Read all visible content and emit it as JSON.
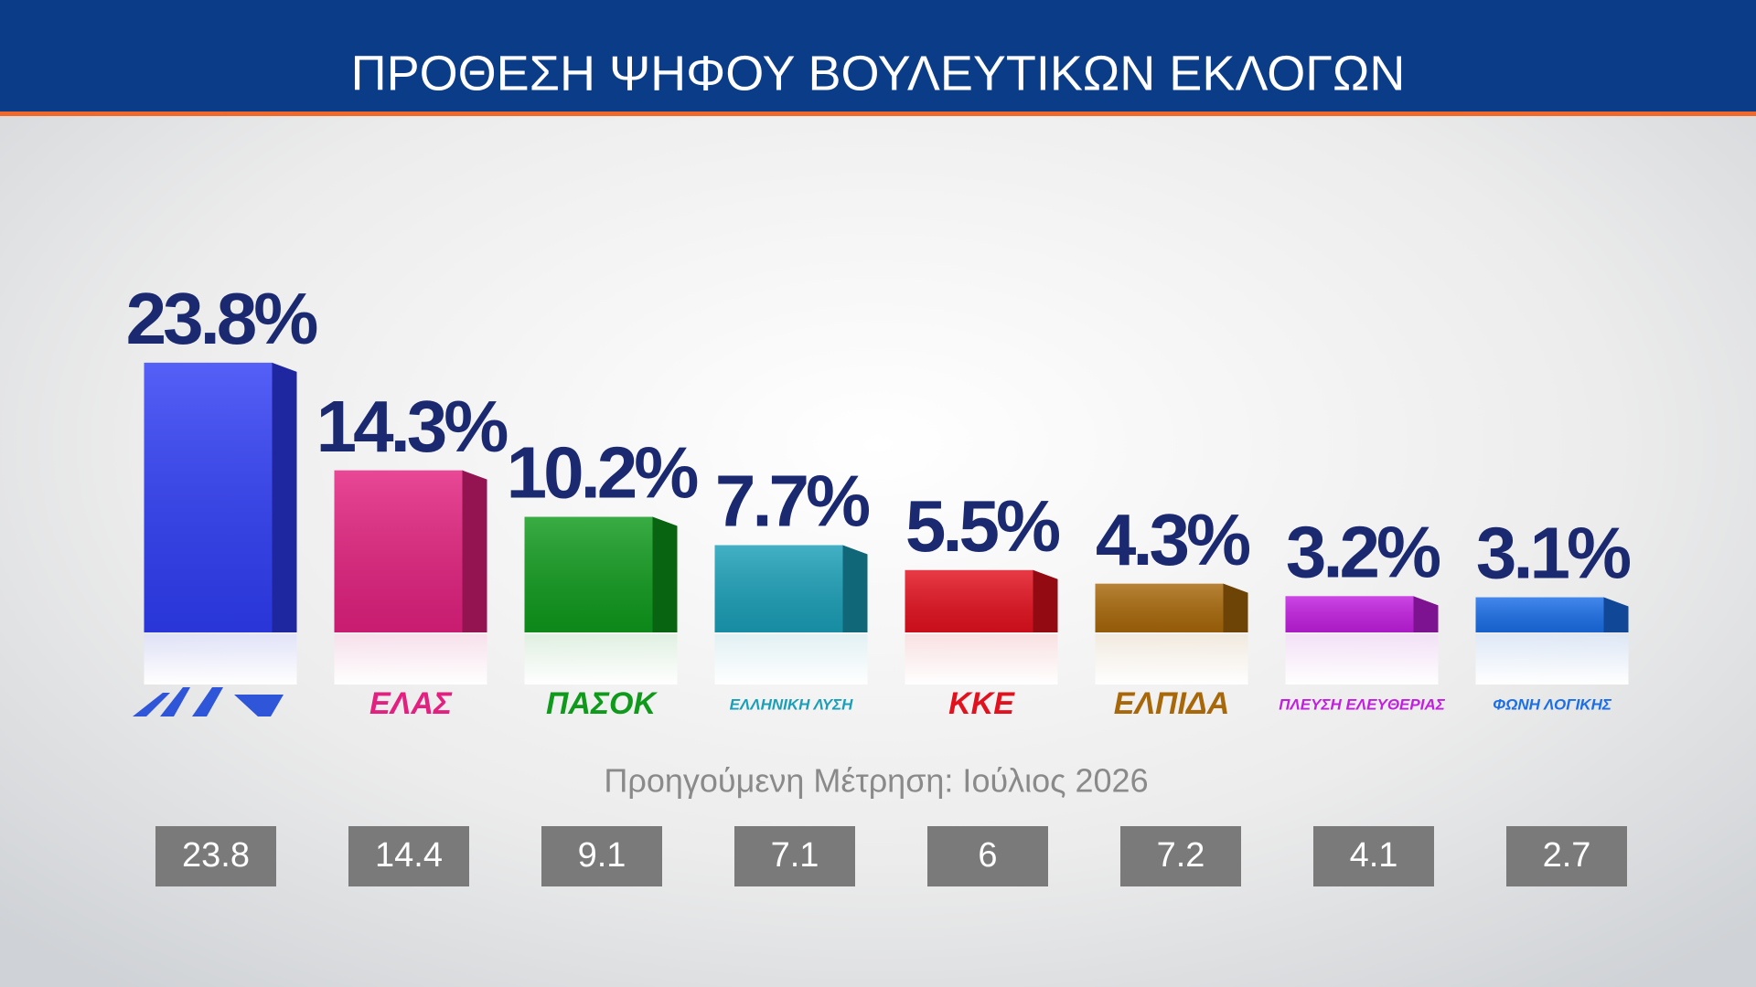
{
  "chart_data": {
    "type": "bar",
    "title": "ΠΡΟΘΕΣΗ ΨΗΦΟΥ ΒΟΥΛΕΥΤΙΚΩΝ ΕΚΛΟΓΩΝ",
    "categories": [
      null,
      "ΕΛΑΣ",
      "ΠΑΣΟΚ",
      "ΕΛΛΗΝΙΚΗ ΛΥΣΗ",
      "ΚΚΕ",
      "ΕΛΠΙΔΑ",
      "ΠΛΕΥΣΗ ΕΛΕΥΘΕΡΙΑΣ",
      "ΦΩΝΗ ΛΟΓΙΚΗΣ"
    ],
    "values": [
      23.8,
      14.3,
      10.2,
      7.7,
      5.5,
      4.3,
      3.2,
      3.1
    ],
    "value_labels": [
      "23.8%",
      "14.3%",
      "10.2%",
      "7.7%",
      "5.5%",
      "4.3%",
      "3.2%",
      "3.1%"
    ],
    "colors": [
      "#2f3df5",
      "#e3207f",
      "#0f9a1c",
      "#1a9fb8",
      "#e3101e",
      "#a8680a",
      "#c21ee0",
      "#1a6ee8"
    ],
    "previous_title": "Προηγούμενη Μέτρηση: Ιούλιος 2026",
    "previous_values": [
      23.8,
      14.4,
      9.1,
      7.1,
      6,
      7.2,
      4.1,
      2.7
    ]
  }
}
